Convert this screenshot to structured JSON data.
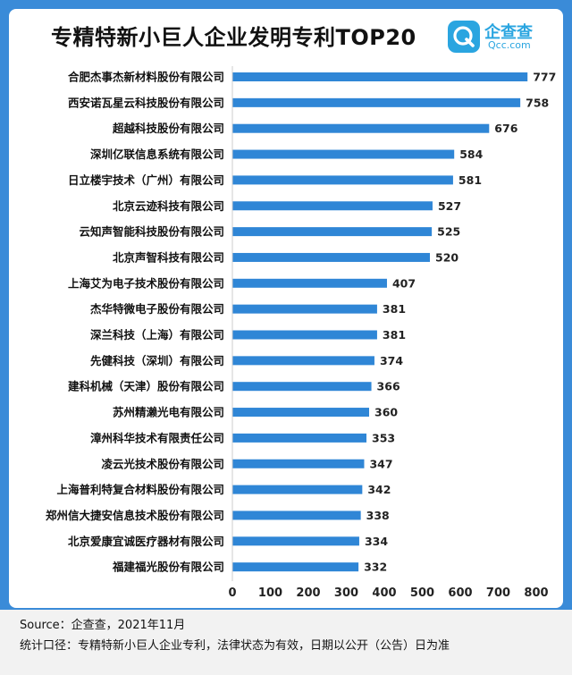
{
  "brand": {
    "name": "企查查",
    "domain": "Qcc.com",
    "icon": "magnifier-q-icon",
    "color": "#2aa5e0"
  },
  "chart_data": {
    "type": "bar",
    "orientation": "horizontal",
    "title": "专精特新小巨人企业发明专利TOP20",
    "categories": [
      "合肥杰事杰新材料股份有限公司",
      "西安诺瓦星云科技股份有限公司",
      "超越科技股份有限公司",
      "深圳亿联信息系统有限公司",
      "日立楼宇技术（广州）有限公司",
      "北京云迹科技有限公司",
      "云知声智能科技股份有限公司",
      "北京声智科技有限公司",
      "上海艾为电子技术股份有限公司",
      "杰华特微电子股份有限公司",
      "深兰科技（上海）有限公司",
      "先健科技（深圳）有限公司",
      "建科机械（天津）股份有限公司",
      "苏州精濑光电有限公司",
      "漳州科华技术有限责任公司",
      "凌云光技术股份有限公司",
      "上海普利特复合材料股份有限公司",
      "郑州信大捷安信息技术股份有限公司",
      "北京爱康宜诚医疗器材有限公司",
      "福建福光股份有限公司"
    ],
    "values": [
      777,
      758,
      676,
      584,
      581,
      527,
      525,
      520,
      407,
      381,
      381,
      374,
      366,
      360,
      353,
      347,
      342,
      338,
      334,
      332
    ],
    "xlim": [
      0,
      800
    ],
    "xticks": [
      "0",
      "100",
      "200",
      "300",
      "400",
      "500",
      "600",
      "700",
      "800"
    ],
    "bar_color": "#2f86d6",
    "grid": false,
    "legend": "none"
  },
  "footer": {
    "source": "Source：企查查，2021年11月",
    "note": "统计口径：专精特新小巨人企业专利，法律状态为有效，日期以公开（公告）日为准"
  }
}
